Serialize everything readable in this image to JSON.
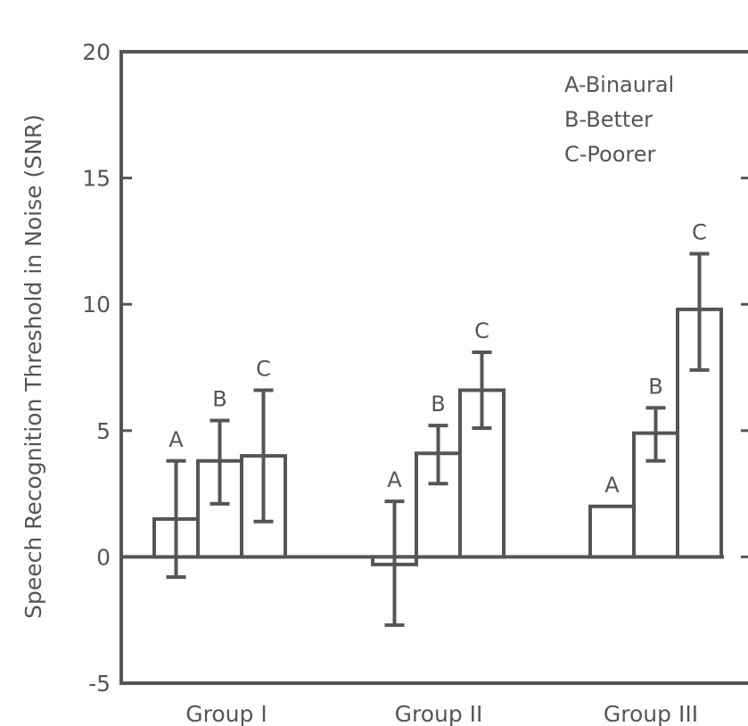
{
  "chart_data": {
    "type": "bar",
    "ylabel": "Speech Recognition Threshold in Noise (SNR)",
    "ylim": [
      -5,
      20
    ],
    "yticks": [
      -5,
      0,
      5,
      10,
      15,
      20
    ],
    "categories": [
      "Group I",
      "Group II",
      "Group III"
    ],
    "series": [
      {
        "name": "A",
        "values": [
          1.5,
          -0.3,
          2.0
        ],
        "error_low": [
          -0.8,
          -2.7,
          null
        ],
        "error_high": [
          3.8,
          2.2,
          null
        ]
      },
      {
        "name": "B",
        "values": [
          3.8,
          4.1,
          4.9
        ],
        "error_low": [
          2.1,
          2.9,
          3.8
        ],
        "error_high": [
          5.4,
          5.2,
          5.9
        ]
      },
      {
        "name": "C",
        "values": [
          4.0,
          6.6,
          9.8
        ],
        "error_low": [
          1.4,
          5.1,
          7.4
        ],
        "error_high": [
          6.6,
          8.1,
          12.0
        ]
      }
    ],
    "legend": [
      "A-Binaural",
      "B-Better",
      "C-Poorer"
    ],
    "legend_position": "top-right",
    "grid": false,
    "colors": {
      "ink": "#555555",
      "bar_fill": "#ffffff"
    }
  }
}
